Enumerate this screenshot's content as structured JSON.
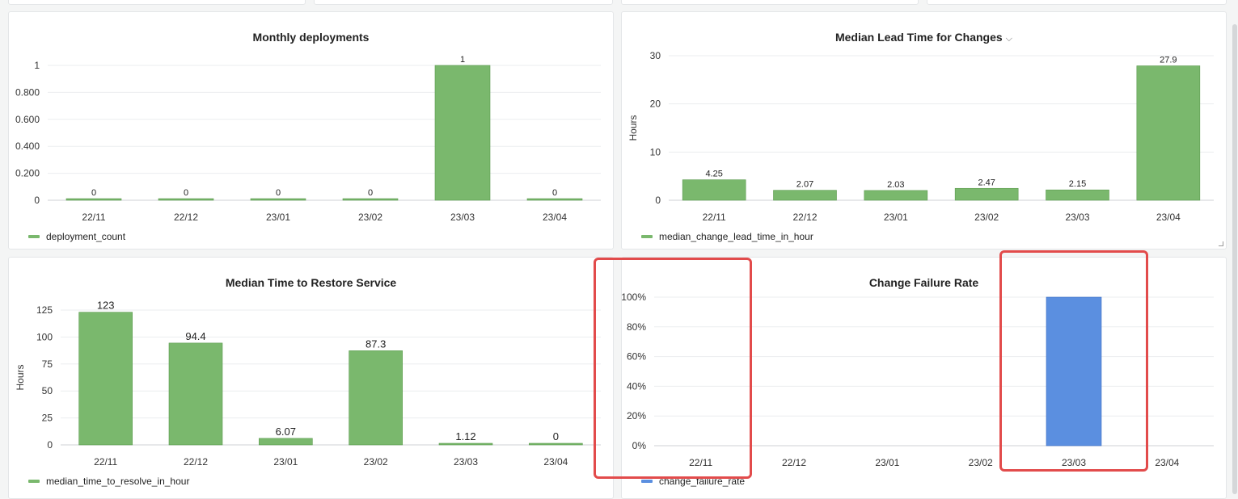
{
  "panels": [
    {
      "title": "Monthly deployments",
      "has_menu": false,
      "legend": "deployment_count",
      "chart_data": {
        "type": "bar",
        "categories": [
          "22/11",
          "22/12",
          "23/01",
          "23/02",
          "23/03",
          "23/04"
        ],
        "series": [
          {
            "name": "deployment_count",
            "values": [
              0,
              0,
              0,
              0,
              1,
              0
            ]
          }
        ],
        "data_labels": [
          "0",
          "0",
          "0",
          "0",
          "1",
          "0"
        ],
        "ylabel": "",
        "ylim": [
          0,
          1
        ],
        "yticks": [
          0,
          0.2,
          0.4,
          0.6,
          0.8,
          1
        ],
        "ytick_labels": [
          "0",
          "0.200",
          "0.400",
          "0.600",
          "0.800",
          "1"
        ],
        "grid": true,
        "color": "#7ab86d",
        "legend_position": "bottom-left"
      }
    },
    {
      "title": "Median Lead Time for Changes",
      "has_menu": true,
      "legend": "median_change_lead_time_in_hour",
      "chart_data": {
        "type": "bar",
        "categories": [
          "22/11",
          "22/12",
          "23/01",
          "23/02",
          "23/03",
          "23/04"
        ],
        "series": [
          {
            "name": "median_change_lead_time_in_hour",
            "values": [
              4.25,
              2.07,
              2.03,
              2.47,
              2.15,
              27.9
            ]
          }
        ],
        "data_labels": [
          "4.25",
          "2.07",
          "2.03",
          "2.47",
          "2.15",
          "27.9"
        ],
        "ylabel": "Hours",
        "ylim": [
          0,
          30
        ],
        "yticks": [
          0,
          10,
          20,
          30
        ],
        "ytick_labels": [
          "0",
          "10",
          "20",
          "30"
        ],
        "grid": true,
        "color": "#7ab86d",
        "legend_position": "bottom-left"
      }
    },
    {
      "title": "Median Time to Restore Service",
      "has_menu": false,
      "legend": "median_time_to_resolve_in_hour",
      "chart_data": {
        "type": "bar",
        "categories": [
          "22/11",
          "22/12",
          "23/01",
          "23/02",
          "23/03",
          "23/04"
        ],
        "series": [
          {
            "name": "median_time_to_resolve_in_hour",
            "values": [
              123,
              94.4,
              6.07,
              87.3,
              1.12,
              0
            ]
          }
        ],
        "data_labels": [
          "123",
          "94.4",
          "6.07",
          "87.3",
          "1.12",
          "0"
        ],
        "ylabel": "Hours",
        "ylim": [
          0,
          125
        ],
        "yticks": [
          0,
          25,
          50,
          75,
          100,
          125
        ],
        "ytick_labels": [
          "0",
          "25",
          "50",
          "75",
          "100",
          "125"
        ],
        "grid": true,
        "color": "#7ab86d",
        "legend_position": "bottom-left"
      }
    },
    {
      "title": "Change Failure Rate",
      "has_menu": false,
      "legend": "change_failure_rate",
      "chart_data": {
        "type": "bar",
        "categories": [
          "22/11",
          "22/12",
          "23/01",
          "23/02",
          "23/03",
          "23/04"
        ],
        "series": [
          {
            "name": "change_failure_rate",
            "values": [
              null,
              null,
              null,
              null,
              100,
              null
            ]
          }
        ],
        "data_labels": [
          "",
          "",
          "",
          "",
          "",
          ""
        ],
        "ylabel": "",
        "ylim": [
          0,
          100
        ],
        "yticks": [
          0,
          20,
          40,
          60,
          80,
          100
        ],
        "ytick_labels": [
          "0%",
          "20%",
          "40%",
          "60%",
          "80%",
          "100%"
        ],
        "grid": true,
        "color": "#5b8fe0",
        "legend_position": "bottom-left"
      }
    }
  ],
  "colors": {
    "green_bar": "#7ab86d",
    "blue_bar": "#5b8fe0",
    "highlight": "#e24b4b"
  }
}
